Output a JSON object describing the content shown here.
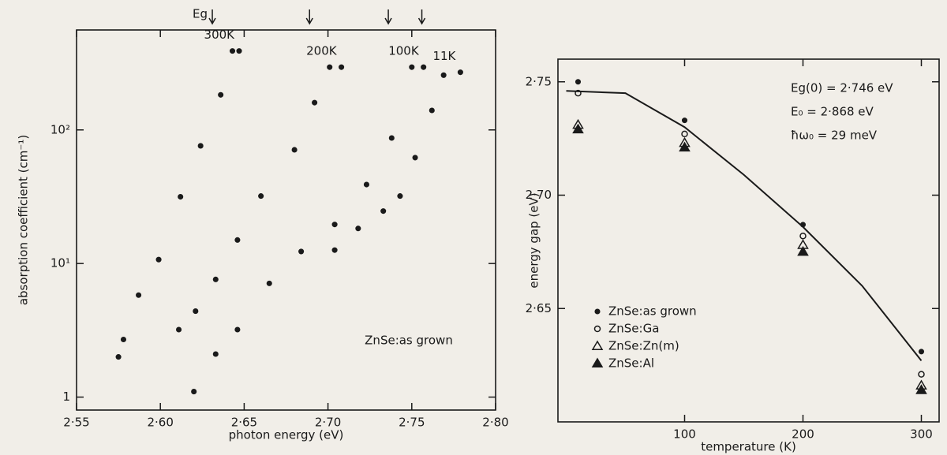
{
  "chart_data": [
    {
      "type": "scatter",
      "log_y": true,
      "xlabel": "photon energy (eV)",
      "ylabel": "absorption coefficient (cm⁻¹)",
      "xlim": [
        2.55,
        2.8
      ],
      "ylim": [
        0.8,
        560
      ],
      "xticks": [
        {
          "value": 2.55,
          "label": "2·55"
        },
        {
          "value": 2.6,
          "label": "2·60"
        },
        {
          "value": 2.65,
          "label": "2·65"
        },
        {
          "value": 2.7,
          "label": "2·70"
        },
        {
          "value": 2.75,
          "label": "2·75"
        },
        {
          "value": 2.8,
          "label": "2·80"
        }
      ],
      "yticks": [
        1,
        {
          "value": 10,
          "label": "10¹"
        },
        {
          "value": 100,
          "label": "10²"
        }
      ],
      "eg_label": "Eg",
      "eg_arrows": [
        2.631,
        2.689,
        2.736,
        2.756
      ],
      "annotation": "ZnSe:as grown",
      "series": [
        {
          "name": "300K",
          "color": "#1a1a1a",
          "marker": "circle-filled",
          "x": [
            2.575,
            2.578,
            2.587,
            2.599,
            2.612,
            2.624,
            2.636,
            2.643,
            2.647
          ],
          "values": [
            2.0,
            2.7,
            5.8,
            10.7,
            31.6,
            76,
            183,
            390,
            390
          ]
        },
        {
          "name": "200K",
          "color": "#1a1a1a",
          "marker": "circle-filled",
          "x": [
            2.611,
            2.621,
            2.633,
            2.646,
            2.66,
            2.68,
            2.692,
            2.701,
            2.708
          ],
          "values": [
            3.2,
            4.4,
            7.6,
            15,
            32,
            71,
            160,
            295,
            295
          ]
        },
        {
          "name": "100K",
          "color": "#1a1a1a",
          "marker": "circle-filled",
          "x": [
            2.62,
            2.633,
            2.646,
            2.665,
            2.684,
            2.704,
            2.723,
            2.738,
            2.75,
            2.757
          ],
          "values": [
            1.1,
            2.1,
            3.2,
            7.1,
            12.3,
            19.6,
            39,
            87,
            295,
            295
          ]
        },
        {
          "name": "11K",
          "color": "#1a1a1a",
          "marker": "circle-filled",
          "x": [
            2.704,
            2.718,
            2.733,
            2.743,
            2.752,
            2.762,
            2.769,
            2.779
          ],
          "values": [
            12.6,
            18.3,
            24.7,
            32,
            62,
            140,
            257,
            270
          ]
        }
      ]
    },
    {
      "type": "scatter",
      "log_y": false,
      "xlabel": "temperature (K)",
      "ylabel": "energy gap (eV)",
      "xlim": [
        -7,
        315
      ],
      "ylim": [
        2.6,
        2.76
      ],
      "xticks": [
        100,
        200,
        300
      ],
      "yticks": [
        {
          "value": 2.65,
          "label": "2·65"
        },
        {
          "value": 2.7,
          "label": "2·70"
        },
        {
          "value": 2.75,
          "label": "2·75"
        }
      ],
      "legend": "lower left",
      "notes": [
        "Eg(0) = 2·746 eV",
        "E₀ = 2·868 eV",
        "ħω₀ = 29 meV"
      ],
      "curve": {
        "color": "#1a1a1a",
        "x": [
          0,
          50,
          100,
          150,
          200,
          250,
          300
        ],
        "values": [
          2.746,
          2.745,
          2.73,
          2.709,
          2.686,
          2.66,
          2.627
        ]
      },
      "series": [
        {
          "name": "ZnSe:as grown",
          "color": "#1a1a1a",
          "marker": "circle-filled",
          "x": [
            10,
            100,
            200,
            300
          ],
          "values": [
            2.75,
            2.733,
            2.687,
            2.631
          ]
        },
        {
          "name": "ZnSe:Ga",
          "color": "#1a1a1a",
          "marker": "circle-open",
          "x": [
            10,
            100,
            200,
            300
          ],
          "values": [
            2.745,
            2.727,
            2.682,
            2.621
          ]
        },
        {
          "name": "ZnSe:Zn(m)",
          "color": "#1a1a1a",
          "marker": "triangle-open",
          "x": [
            10,
            100,
            200,
            300
          ],
          "values": [
            2.731,
            2.723,
            2.678,
            2.616
          ]
        },
        {
          "name": "ZnSe:Al",
          "color": "#1a1a1a",
          "marker": "triangle-filled",
          "x": [
            10,
            100,
            200,
            300
          ],
          "values": [
            2.729,
            2.721,
            2.675,
            2.614
          ]
        }
      ]
    }
  ]
}
